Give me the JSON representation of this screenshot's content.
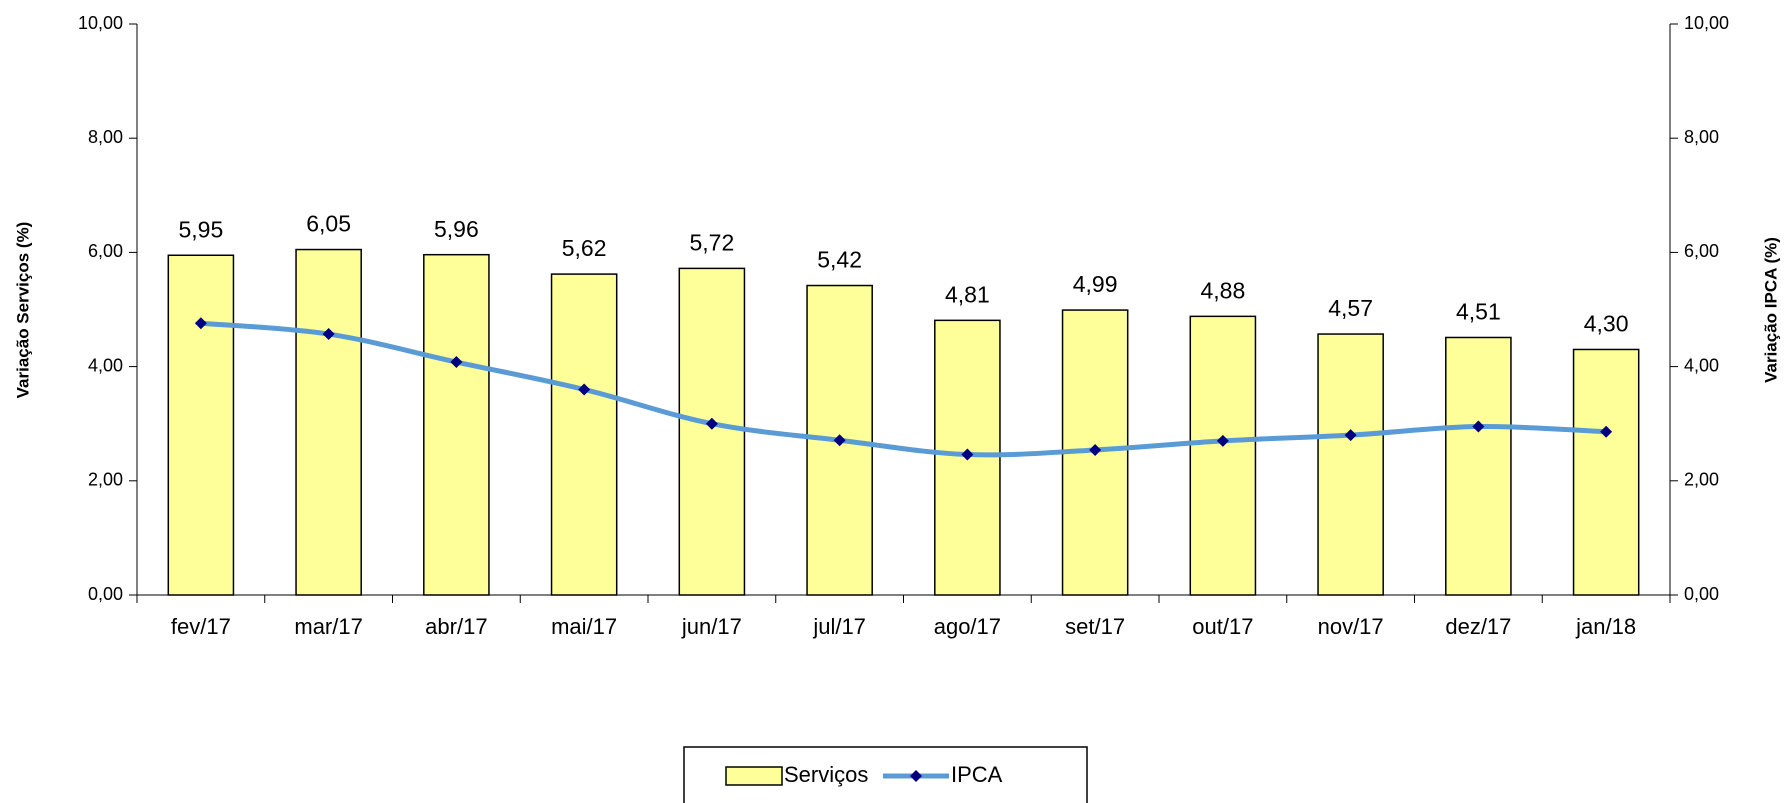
{
  "chart_data": {
    "type": "bar",
    "categories": [
      "fev/17",
      "mar/17",
      "abr/17",
      "mai/17",
      "jun/17",
      "jul/17",
      "ago/17",
      "set/17",
      "out/17",
      "nov/17",
      "dez/17",
      "jan/18"
    ],
    "series": [
      {
        "name": "Serviços",
        "type": "bar",
        "color": "#ffff99",
        "values": [
          5.95,
          6.05,
          5.96,
          5.62,
          5.72,
          5.42,
          4.81,
          4.99,
          4.88,
          4.57,
          4.51,
          4.3
        ],
        "value_labels": [
          "5,95",
          "6,05",
          "5,96",
          "5,62",
          "5,72",
          "5,42",
          "4,81",
          "4,99",
          "4,88",
          "4,57",
          "4,51",
          "4,30"
        ]
      },
      {
        "name": "IPCA",
        "type": "line",
        "axis": "y2",
        "color": "#5b9bd5",
        "marker_color": "#000080",
        "values": [
          4.76,
          4.57,
          4.08,
          3.6,
          3.0,
          2.71,
          2.46,
          2.54,
          2.7,
          2.8,
          2.95,
          2.86
        ]
      }
    ],
    "y_label": "Variação Serviços (%)",
    "y2_label": "Variação IPCA (%)",
    "ylim": [
      0,
      10
    ],
    "yticks": [
      {
        "value": 0,
        "label": "0,00"
      },
      {
        "value": 2,
        "label": "2,00"
      },
      {
        "value": 4,
        "label": "4,00"
      },
      {
        "value": 6,
        "label": "6,00"
      },
      {
        "value": 8,
        "label": "8,00"
      },
      {
        "value": 10,
        "label": "10,00"
      }
    ],
    "y2lim": [
      0,
      10
    ],
    "y2ticks": [
      {
        "value": 0,
        "label": "0,00"
      },
      {
        "value": 2,
        "label": "2,00"
      },
      {
        "value": 4,
        "label": "4,00"
      },
      {
        "value": 6,
        "label": "6,00"
      },
      {
        "value": 8,
        "label": "8,00"
      },
      {
        "value": 10,
        "label": "10,00"
      }
    ],
    "grid": false,
    "legend": "bottom"
  }
}
